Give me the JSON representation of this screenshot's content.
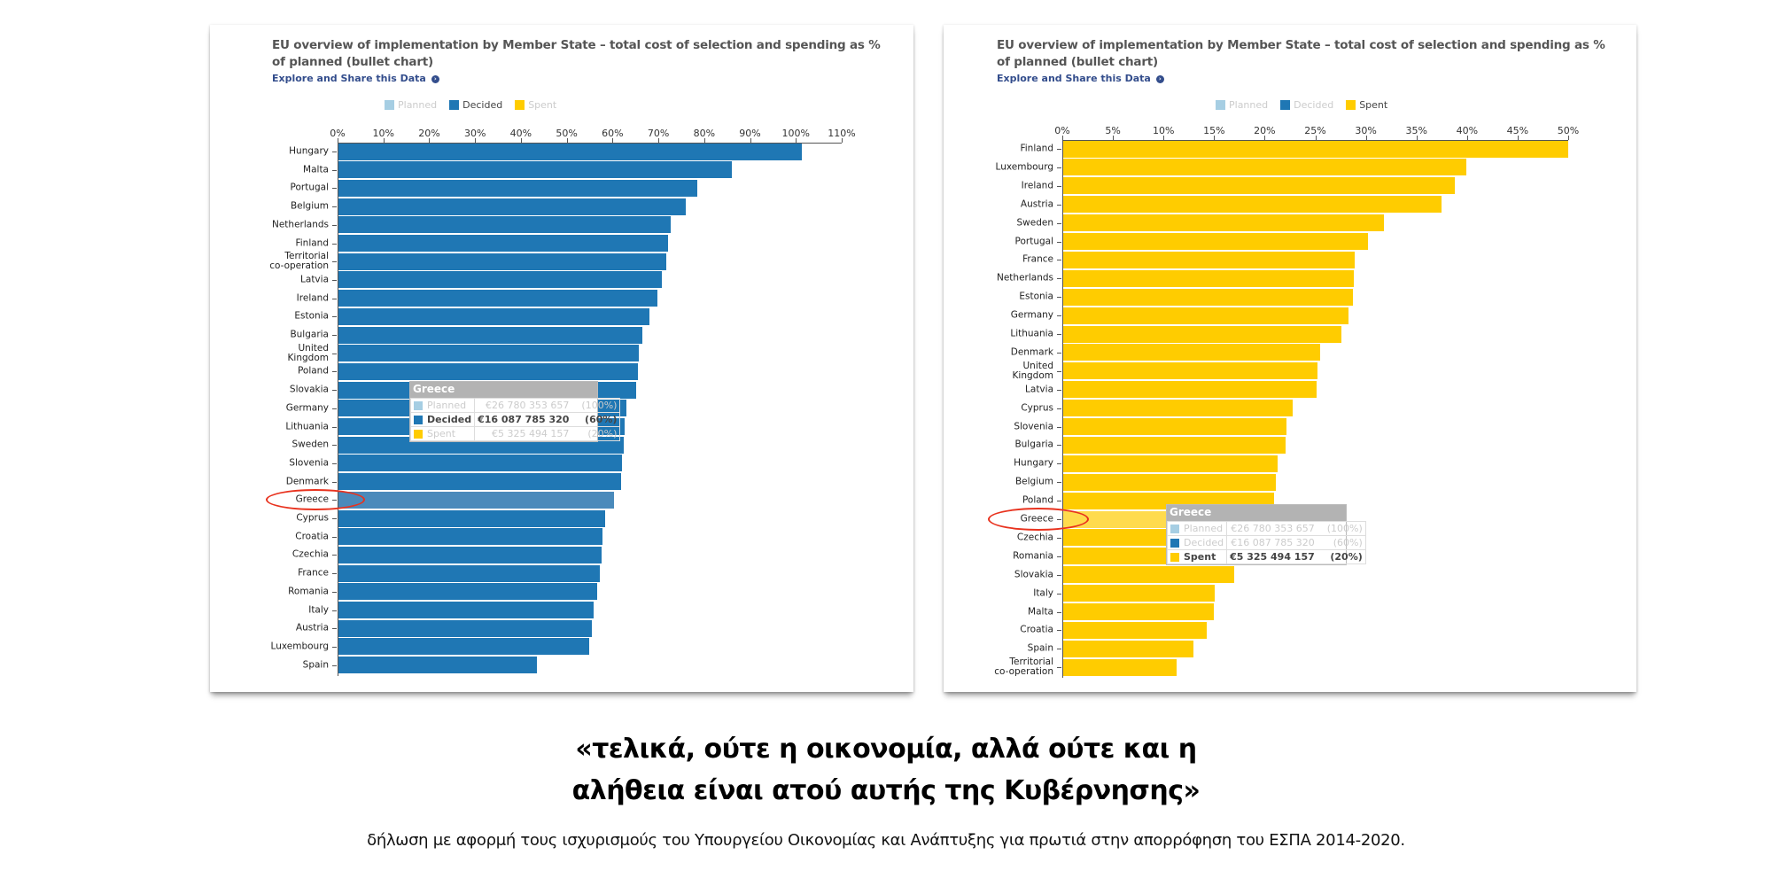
{
  "colors": {
    "planned": "#a6cee3",
    "decided": "#1f77b4",
    "spent": "#ffcc00",
    "decided_highlight": "#4a8abb",
    "spent_highlight": "#ffdb4d",
    "annotation": "#e8321e"
  },
  "chart_data": [
    {
      "type": "bar",
      "orientation": "horizontal",
      "title": "EU overview of implementation by Member State – total cost of selection and spending as % of planned (bullet chart)",
      "link": "Explore and Share this Data",
      "legend": [
        "Planned",
        "Decided",
        "Spent"
      ],
      "active_series": "Decided",
      "xlim": [
        0,
        110
      ],
      "ticks": [
        "0%",
        "10%",
        "20%",
        "30%",
        "40%",
        "50%",
        "60%",
        "70%",
        "80%",
        "90%",
        "100%",
        "110%"
      ],
      "categories": [
        "Hungary",
        "Malta",
        "Portugal",
        "Belgium",
        "Netherlands",
        "Finland",
        "Territorial\nco-operation",
        "Latvia",
        "Ireland",
        "Estonia",
        "Bulgaria",
        "United\nKingdom",
        "Poland",
        "Slovakia",
        "Germany",
        "Lithuania",
        "Sweden",
        "Slovenia",
        "Denmark",
        "Greece",
        "Cyprus",
        "Croatia",
        "Czechia",
        "France",
        "Romania",
        "Italy",
        "Austria",
        "Luxembourg",
        "Spain"
      ],
      "values": [
        101.1,
        85.8,
        78.2,
        75.7,
        72.5,
        72.0,
        71.5,
        70.5,
        69.5,
        67.8,
        66.3,
        65.6,
        65.4,
        64.9,
        62.9,
        62.4,
        62.2,
        61.9,
        61.7,
        60.2,
        58.2,
        57.7,
        57.5,
        57.0,
        56.5,
        55.7,
        55.2,
        54.8,
        43.4
      ],
      "highlight": "Greece",
      "tooltip": {
        "title": "Greece",
        "rows": [
          {
            "label": "Planned",
            "amount": "€26 780 353 657",
            "pct": "(100%)"
          },
          {
            "label": "Decided",
            "amount": "€16 087 785 320",
            "pct": "(60%)"
          },
          {
            "label": "Spent",
            "amount": "€5 325 494 157",
            "pct": "(20%)"
          }
        ]
      }
    },
    {
      "type": "bar",
      "orientation": "horizontal",
      "title": "EU overview of implementation by Member State – total cost of selection and spending as % of planned (bullet chart)",
      "link": "Explore and Share this Data",
      "legend": [
        "Planned",
        "Decided",
        "Spent"
      ],
      "active_series": "Spent",
      "xlim": [
        0,
        50
      ],
      "ticks": [
        "0%",
        "5%",
        "10%",
        "15%",
        "20%",
        "25%",
        "30%",
        "35%",
        "40%",
        "45%",
        "50%"
      ],
      "categories": [
        "Finland",
        "Luxembourg",
        "Ireland",
        "Austria",
        "Sweden",
        "Portugal",
        "France",
        "Netherlands",
        "Estonia",
        "Germany",
        "Lithuania",
        "Denmark",
        "United\nKingdom",
        "Latvia",
        "Cyprus",
        "Slovenia",
        "Bulgaria",
        "Hungary",
        "Belgium",
        "Poland",
        "Greece",
        "Czechia",
        "Romania",
        "Slovakia",
        "Italy",
        "Malta",
        "Croatia",
        "Spain",
        "Territorial\nco-operation"
      ],
      "values": [
        49.9,
        39.8,
        38.7,
        37.4,
        31.7,
        30.1,
        28.8,
        28.7,
        28.6,
        28.2,
        27.5,
        25.4,
        25.1,
        25.0,
        22.7,
        22.1,
        22.0,
        21.2,
        21.0,
        20.8,
        19.9,
        19.0,
        17.8,
        16.9,
        15.0,
        14.9,
        14.2,
        12.9,
        11.2
      ],
      "highlight": "Greece",
      "tooltip": {
        "title": "Greece",
        "rows": [
          {
            "label": "Planned",
            "amount": "€26 780 353 657",
            "pct": "(100%)"
          },
          {
            "label": "Decided",
            "amount": "€16 087 785 320",
            "pct": "(60%)"
          },
          {
            "label": "Spent",
            "amount": "€5 325 494 157",
            "pct": "(20%)"
          }
        ]
      }
    }
  ],
  "quote": {
    "line1": "«τελικά, ούτε η οικονομία, αλλά ούτε και η",
    "line2": "αλήθεια είναι ατού αυτής της Κυβέρνησης»"
  },
  "caption": "δήλωση με αφορμή τους ισχυρισμούς του Υπουργείου Οικονομίας και Ανάπτυξης για πρωτιά στην απορρόφηση του ΕΣΠΑ 2014-2020."
}
